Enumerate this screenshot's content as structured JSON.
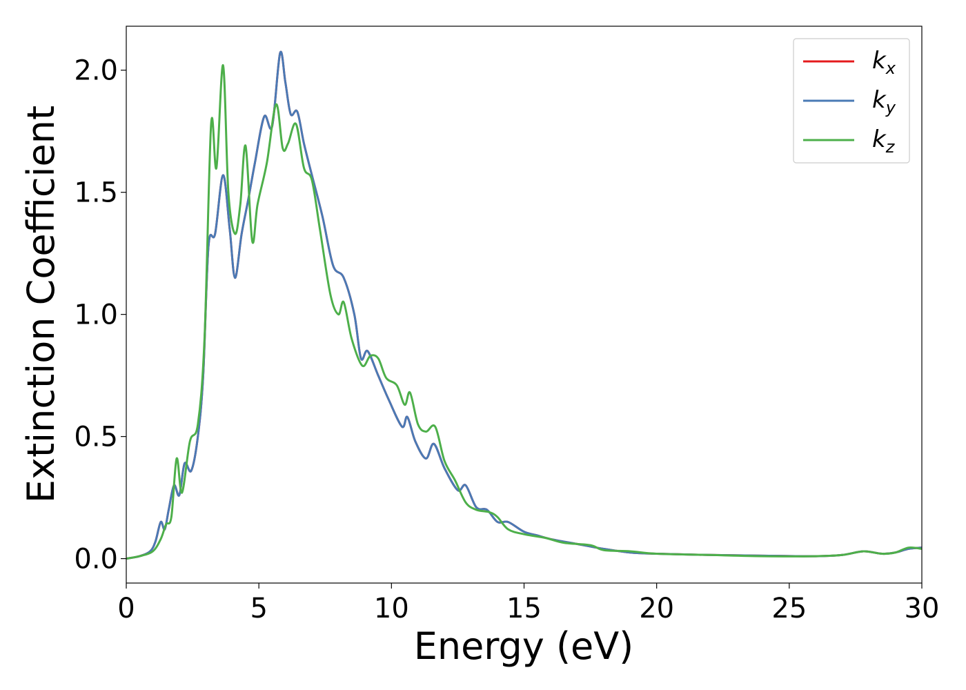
{
  "chart_data": {
    "type": "line",
    "xlabel": "Energy (eV)",
    "ylabel": "Extinction Coefficient",
    "xlim": [
      0,
      30
    ],
    "ylim": [
      -0.1,
      2.18
    ],
    "grid": false,
    "legend_position": "top-right",
    "x_ticks": [
      0,
      5,
      10,
      15,
      20,
      25,
      30
    ],
    "x_tick_labels": [
      "0",
      "5",
      "10",
      "15",
      "20",
      "25",
      "30"
    ],
    "y_ticks": [
      0.0,
      0.5,
      1.0,
      1.5,
      2.0
    ],
    "y_tick_labels": [
      "0.0",
      "0.5",
      "1.0",
      "1.5",
      "2.0"
    ],
    "series": [
      {
        "name": "k_x",
        "legend_base": "k",
        "legend_sub": "x",
        "color": "#e41a1c",
        "points": [
          [
            0,
            0
          ],
          [
            0.5,
            0.01
          ],
          [
            0.9,
            0.03
          ],
          [
            1.1,
            0.07
          ],
          [
            1.3,
            0.15
          ],
          [
            1.45,
            0.12
          ],
          [
            1.6,
            0.2
          ],
          [
            1.8,
            0.3
          ],
          [
            2.0,
            0.26
          ],
          [
            2.2,
            0.39
          ],
          [
            2.45,
            0.36
          ],
          [
            2.7,
            0.5
          ],
          [
            2.9,
            0.75
          ],
          [
            3.1,
            1.28
          ],
          [
            3.35,
            1.33
          ],
          [
            3.65,
            1.57
          ],
          [
            3.9,
            1.35
          ],
          [
            4.1,
            1.15
          ],
          [
            4.35,
            1.33
          ],
          [
            4.6,
            1.47
          ],
          [
            4.85,
            1.62
          ],
          [
            5.2,
            1.81
          ],
          [
            5.5,
            1.77
          ],
          [
            5.8,
            2.07
          ],
          [
            6.0,
            1.95
          ],
          [
            6.2,
            1.82
          ],
          [
            6.45,
            1.83
          ],
          [
            6.7,
            1.7
          ],
          [
            7.0,
            1.57
          ],
          [
            7.4,
            1.4
          ],
          [
            7.8,
            1.2
          ],
          [
            8.2,
            1.15
          ],
          [
            8.6,
            1.0
          ],
          [
            8.85,
            0.82
          ],
          [
            9.1,
            0.85
          ],
          [
            9.5,
            0.75
          ],
          [
            9.9,
            0.65
          ],
          [
            10.4,
            0.54
          ],
          [
            10.6,
            0.58
          ],
          [
            10.9,
            0.48
          ],
          [
            11.3,
            0.41
          ],
          [
            11.6,
            0.47
          ],
          [
            12.0,
            0.37
          ],
          [
            12.5,
            0.28
          ],
          [
            12.8,
            0.3
          ],
          [
            13.2,
            0.21
          ],
          [
            13.6,
            0.2
          ],
          [
            14.0,
            0.15
          ],
          [
            14.4,
            0.15
          ],
          [
            15.0,
            0.11
          ],
          [
            15.5,
            0.095
          ],
          [
            16.0,
            0.08
          ],
          [
            17.0,
            0.06
          ],
          [
            18.0,
            0.04
          ],
          [
            19.0,
            0.025
          ],
          [
            20.0,
            0.02
          ],
          [
            22.0,
            0.015
          ],
          [
            24.0,
            0.012
          ],
          [
            26.0,
            0.01
          ],
          [
            27.0,
            0.015
          ],
          [
            27.8,
            0.03
          ],
          [
            28.5,
            0.02
          ],
          [
            29.0,
            0.025
          ],
          [
            29.5,
            0.04
          ],
          [
            30.0,
            0.045
          ]
        ]
      },
      {
        "name": "k_y",
        "legend_base": "k",
        "legend_sub": "y",
        "color": "#4a7ab5",
        "points": [
          [
            0,
            0
          ],
          [
            0.5,
            0.01
          ],
          [
            0.9,
            0.03
          ],
          [
            1.1,
            0.07
          ],
          [
            1.3,
            0.15
          ],
          [
            1.45,
            0.12
          ],
          [
            1.6,
            0.2
          ],
          [
            1.8,
            0.3
          ],
          [
            2.0,
            0.26
          ],
          [
            2.2,
            0.39
          ],
          [
            2.45,
            0.36
          ],
          [
            2.7,
            0.5
          ],
          [
            2.9,
            0.75
          ],
          [
            3.1,
            1.28
          ],
          [
            3.35,
            1.33
          ],
          [
            3.65,
            1.57
          ],
          [
            3.9,
            1.35
          ],
          [
            4.1,
            1.15
          ],
          [
            4.35,
            1.33
          ],
          [
            4.6,
            1.47
          ],
          [
            4.85,
            1.62
          ],
          [
            5.2,
            1.81
          ],
          [
            5.5,
            1.77
          ],
          [
            5.8,
            2.07
          ],
          [
            6.0,
            1.95
          ],
          [
            6.2,
            1.82
          ],
          [
            6.45,
            1.83
          ],
          [
            6.7,
            1.7
          ],
          [
            7.0,
            1.57
          ],
          [
            7.4,
            1.4
          ],
          [
            7.8,
            1.2
          ],
          [
            8.2,
            1.15
          ],
          [
            8.6,
            1.0
          ],
          [
            8.85,
            0.82
          ],
          [
            9.1,
            0.85
          ],
          [
            9.5,
            0.75
          ],
          [
            9.9,
            0.65
          ],
          [
            10.4,
            0.54
          ],
          [
            10.6,
            0.58
          ],
          [
            10.9,
            0.48
          ],
          [
            11.3,
            0.41
          ],
          [
            11.6,
            0.47
          ],
          [
            12.0,
            0.37
          ],
          [
            12.5,
            0.28
          ],
          [
            12.8,
            0.3
          ],
          [
            13.2,
            0.21
          ],
          [
            13.6,
            0.2
          ],
          [
            14.0,
            0.15
          ],
          [
            14.4,
            0.15
          ],
          [
            15.0,
            0.11
          ],
          [
            15.5,
            0.095
          ],
          [
            16.0,
            0.08
          ],
          [
            17.0,
            0.06
          ],
          [
            18.0,
            0.04
          ],
          [
            19.0,
            0.025
          ],
          [
            20.0,
            0.02
          ],
          [
            22.0,
            0.015
          ],
          [
            24.0,
            0.012
          ],
          [
            26.0,
            0.01
          ],
          [
            27.0,
            0.015
          ],
          [
            27.8,
            0.03
          ],
          [
            28.5,
            0.02
          ],
          [
            29.0,
            0.025
          ],
          [
            29.5,
            0.04
          ],
          [
            30.0,
            0.045
          ]
        ]
      },
      {
        "name": "k_z",
        "legend_base": "k",
        "legend_sub": "z",
        "color": "#4daf4a",
        "points": [
          [
            0,
            0
          ],
          [
            0.5,
            0.01
          ],
          [
            1.0,
            0.03
          ],
          [
            1.3,
            0.08
          ],
          [
            1.5,
            0.14
          ],
          [
            1.7,
            0.17
          ],
          [
            1.9,
            0.41
          ],
          [
            2.1,
            0.27
          ],
          [
            2.4,
            0.48
          ],
          [
            2.7,
            0.55
          ],
          [
            2.95,
            0.9
          ],
          [
            3.2,
            1.78
          ],
          [
            3.4,
            1.6
          ],
          [
            3.65,
            2.02
          ],
          [
            3.85,
            1.5
          ],
          [
            4.1,
            1.33
          ],
          [
            4.3,
            1.45
          ],
          [
            4.5,
            1.69
          ],
          [
            4.75,
            1.3
          ],
          [
            4.95,
            1.45
          ],
          [
            5.3,
            1.62
          ],
          [
            5.65,
            1.86
          ],
          [
            5.9,
            1.68
          ],
          [
            6.1,
            1.7
          ],
          [
            6.4,
            1.78
          ],
          [
            6.7,
            1.6
          ],
          [
            7.0,
            1.55
          ],
          [
            7.3,
            1.35
          ],
          [
            7.7,
            1.08
          ],
          [
            8.0,
            1.0
          ],
          [
            8.2,
            1.05
          ],
          [
            8.5,
            0.9
          ],
          [
            8.9,
            0.79
          ],
          [
            9.2,
            0.83
          ],
          [
            9.5,
            0.82
          ],
          [
            9.8,
            0.74
          ],
          [
            10.2,
            0.71
          ],
          [
            10.5,
            0.63
          ],
          [
            10.7,
            0.68
          ],
          [
            11.0,
            0.55
          ],
          [
            11.3,
            0.52
          ],
          [
            11.65,
            0.54
          ],
          [
            12.0,
            0.4
          ],
          [
            12.4,
            0.32
          ],
          [
            12.8,
            0.23
          ],
          [
            13.2,
            0.2
          ],
          [
            13.7,
            0.19
          ],
          [
            14.0,
            0.17
          ],
          [
            14.4,
            0.12
          ],
          [
            15.0,
            0.1
          ],
          [
            15.8,
            0.085
          ],
          [
            16.5,
            0.065
          ],
          [
            17.5,
            0.055
          ],
          [
            18.0,
            0.035
          ],
          [
            19.0,
            0.03
          ],
          [
            20.0,
            0.02
          ],
          [
            22.0,
            0.015
          ],
          [
            24.0,
            0.01
          ],
          [
            26.0,
            0.01
          ],
          [
            27.0,
            0.015
          ],
          [
            27.8,
            0.03
          ],
          [
            28.5,
            0.02
          ],
          [
            29.0,
            0.025
          ],
          [
            29.5,
            0.045
          ],
          [
            30.0,
            0.04
          ]
        ]
      }
    ]
  }
}
